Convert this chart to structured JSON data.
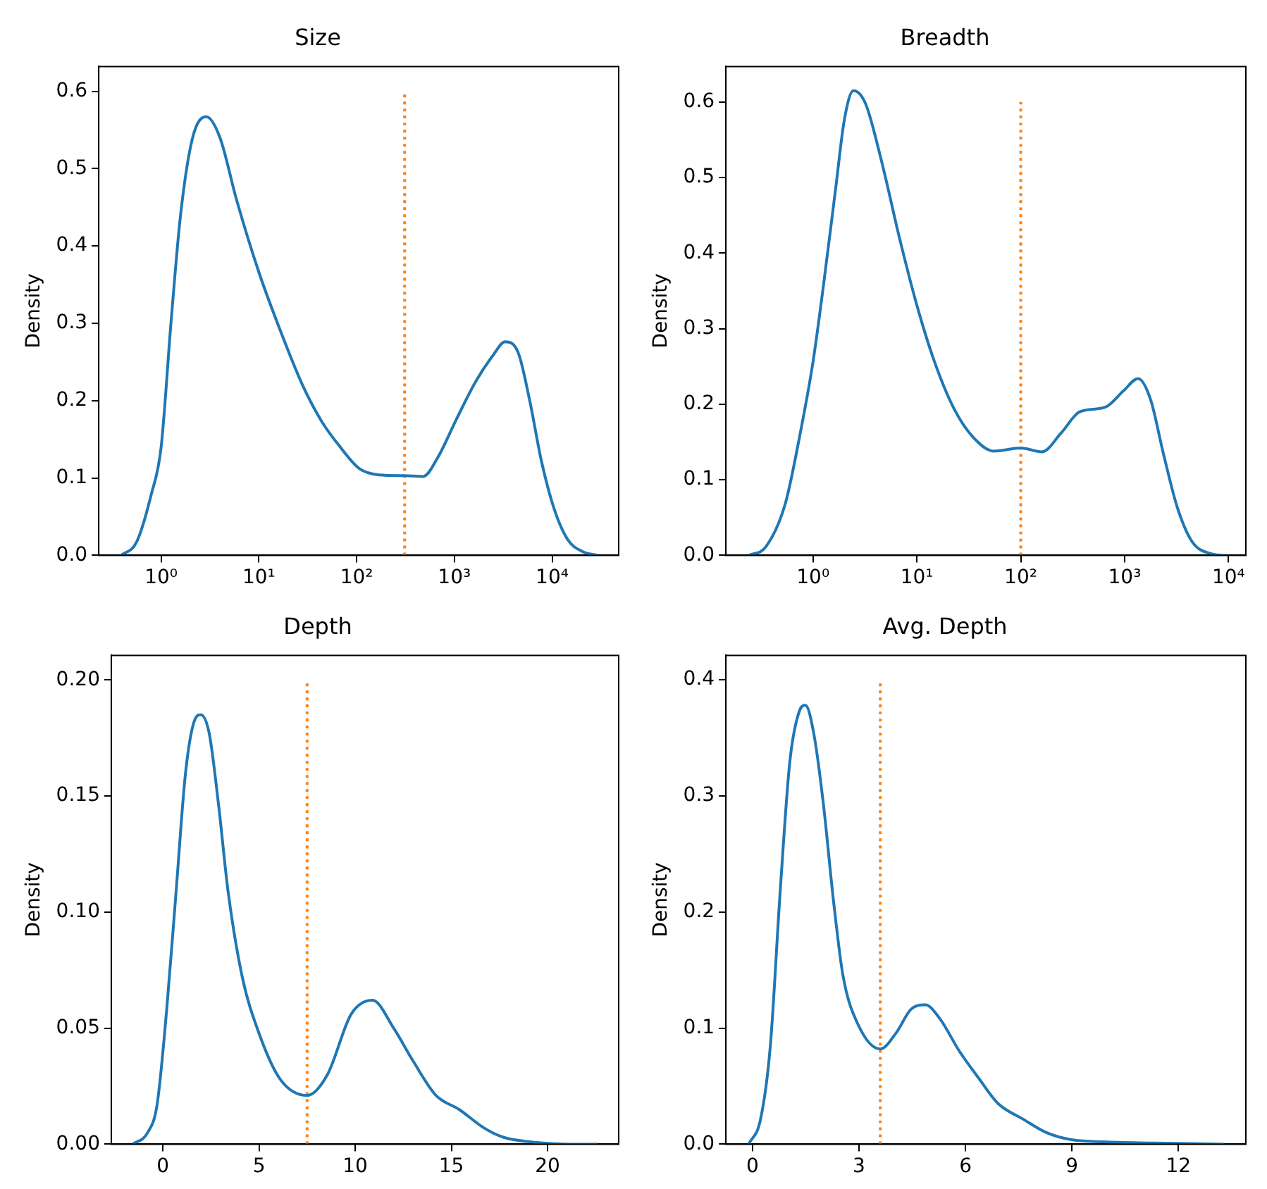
{
  "chart_data": [
    {
      "type": "line",
      "title": "Size",
      "ylabel": "Density",
      "log": "x",
      "grid": false,
      "legend": false,
      "xlim": [
        0.23,
        48000
      ],
      "xticks": [
        {
          "value": 1,
          "label": "10⁰"
        },
        {
          "value": 10,
          "label": "10¹"
        },
        {
          "value": 100,
          "label": "10²"
        },
        {
          "value": 1000,
          "label": "10³"
        },
        {
          "value": 10000,
          "label": "10⁴"
        }
      ],
      "ylim": [
        0,
        0.632
      ],
      "yticks": [
        {
          "value": 0,
          "label": "0.0"
        },
        {
          "value": 0.1,
          "label": "0.1"
        },
        {
          "value": 0.2,
          "label": "0.2"
        },
        {
          "value": 0.3,
          "label": "0.3"
        },
        {
          "value": 0.4,
          "label": "0.4"
        },
        {
          "value": 0.5,
          "label": "0.5"
        },
        {
          "value": 0.6,
          "label": "0.6"
        }
      ],
      "series": [
        {
          "color": "#1f77b4",
          "line_style": "solid",
          "x": [
            0.39,
            0.56,
            0.79,
            1,
            1.26,
            1.58,
            2.1,
            2.9,
            4,
            5.9,
            10,
            17,
            28,
            44,
            68,
            107,
            170,
            310,
            480,
            680,
            1050,
            1660,
            2500,
            3300,
            4500,
            5900,
            7800,
            10500,
            14500,
            20400,
            29000
          ],
          "values": [
            0,
            0.017,
            0.078,
            0.14,
            0.3,
            0.44,
            0.54,
            0.567,
            0.54,
            0.46,
            0.366,
            0.287,
            0.22,
            0.173,
            0.14,
            0.112,
            0.104,
            0.103,
            0.102,
            0.127,
            0.176,
            0.225,
            0.259,
            0.276,
            0.262,
            0.2,
            0.121,
            0.06,
            0.02,
            0.005,
            0
          ]
        },
        {
          "color": "#ff7f0e",
          "line_style": "dotted",
          "x": [
            310,
            310
          ],
          "values": [
            0,
            0.6
          ]
        }
      ]
    },
    {
      "type": "line",
      "title": "Breadth",
      "ylabel": "Density",
      "log": "x",
      "grid": false,
      "legend": false,
      "xlim": [
        0.145,
        14700
      ],
      "xticks": [
        {
          "value": 1,
          "label": "10⁰"
        },
        {
          "value": 10,
          "label": "10¹"
        },
        {
          "value": 100,
          "label": "10²"
        },
        {
          "value": 1000,
          "label": "10³"
        },
        {
          "value": 10000,
          "label": "10⁴"
        }
      ],
      "ylim": [
        0,
        0.647
      ],
      "yticks": [
        {
          "value": 0,
          "label": "0.0"
        },
        {
          "value": 0.1,
          "label": "0.1"
        },
        {
          "value": 0.2,
          "label": "0.2"
        },
        {
          "value": 0.3,
          "label": "0.3"
        },
        {
          "value": 0.4,
          "label": "0.4"
        },
        {
          "value": 0.5,
          "label": "0.5"
        },
        {
          "value": 0.6,
          "label": "0.6"
        }
      ],
      "series": [
        {
          "color": "#1f77b4",
          "line_style": "solid",
          "x": [
            0.24,
            0.35,
            0.54,
            0.74,
            1,
            1.26,
            1.66,
            2.0,
            2.45,
            3.2,
            4.6,
            6.8,
            10,
            14.8,
            23,
            35,
            55,
            100,
            160,
            245,
            370,
            650,
            980,
            1350,
            1780,
            2340,
            3240,
            4470,
            6800,
            8900
          ],
          "values": [
            0,
            0.011,
            0.068,
            0.156,
            0.256,
            0.357,
            0.488,
            0.576,
            0.615,
            0.598,
            0.52,
            0.42,
            0.331,
            0.256,
            0.193,
            0.156,
            0.138,
            0.142,
            0.137,
            0.162,
            0.19,
            0.196,
            0.218,
            0.234,
            0.206,
            0.137,
            0.062,
            0.018,
            0.002,
            0
          ]
        },
        {
          "color": "#ff7f0e",
          "line_style": "dotted",
          "x": [
            100,
            100
          ],
          "values": [
            0,
            0.6
          ]
        }
      ]
    },
    {
      "type": "line",
      "title": "Depth",
      "ylabel": "Density",
      "grid": false,
      "legend": false,
      "xlim": [
        -2.68,
        23.7
      ],
      "xticks": [
        0,
        5,
        10,
        15,
        20
      ],
      "ylim": [
        0,
        0.2106
      ],
      "yticks": [
        {
          "value": 0,
          "label": "0.00"
        },
        {
          "value": 0.05,
          "label": "0.05"
        },
        {
          "value": 0.1,
          "label": "0.10"
        },
        {
          "value": 0.15,
          "label": "0.15"
        },
        {
          "value": 0.2,
          "label": "0.20"
        }
      ],
      "series": [
        {
          "color": "#1f77b4",
          "line_style": "solid",
          "x": [
            -1.57,
            -0.79,
            -0.3,
            0.2,
            0.69,
            1.18,
            1.67,
            1.97,
            2.41,
            2.9,
            3.39,
            4.13,
            4.99,
            6.1,
            7.5,
            8.56,
            9.79,
            10.9,
            12.0,
            13.0,
            14.2,
            15.4,
            16.7,
            17.7,
            19.1,
            21.1,
            22.6
          ],
          "values": [
            0,
            0.005,
            0.017,
            0.058,
            0.109,
            0.16,
            0.183,
            0.185,
            0.177,
            0.146,
            0.109,
            0.072,
            0.048,
            0.028,
            0.021,
            0.03,
            0.056,
            0.062,
            0.05,
            0.036,
            0.021,
            0.015,
            0.007,
            0.003,
            0.001,
            0,
            0
          ]
        },
        {
          "color": "#ff7f0e",
          "line_style": "dotted",
          "x": [
            7.5,
            7.5
          ],
          "values": [
            0,
            0.2
          ]
        }
      ]
    },
    {
      "type": "line",
      "title": "Avg. Depth",
      "ylabel": "Density",
      "grid": false,
      "legend": false,
      "xlim": [
        -0.75,
        13.9
      ],
      "xticks": [
        0,
        3,
        6,
        9,
        12
      ],
      "ylim": [
        0,
        0.421
      ],
      "yticks": [
        {
          "value": 0,
          "label": "0.0"
        },
        {
          "value": 0.1,
          "label": "0.1"
        },
        {
          "value": 0.2,
          "label": "0.2"
        },
        {
          "value": 0.3,
          "label": "0.3"
        },
        {
          "value": 0.4,
          "label": "0.4"
        }
      ],
      "series": [
        {
          "color": "#1f77b4",
          "line_style": "solid",
          "x": [
            -0.11,
            0.23,
            0.5,
            0.78,
            1.05,
            1.32,
            1.49,
            1.73,
            2.0,
            2.28,
            2.55,
            2.96,
            3.6,
            4.05,
            4.46,
            4.87,
            5.28,
            5.83,
            6.37,
            6.92,
            7.6,
            8.28,
            8.96,
            9.9,
            11.3,
            13.3
          ],
          "values": [
            0,
            0.022,
            0.084,
            0.218,
            0.329,
            0.373,
            0.378,
            0.353,
            0.292,
            0.21,
            0.145,
            0.104,
            0.082,
            0.096,
            0.116,
            0.12,
            0.108,
            0.08,
            0.057,
            0.035,
            0.022,
            0.01,
            0.004,
            0.002,
            0.001,
            0
          ]
        },
        {
          "color": "#ff7f0e",
          "line_style": "dotted",
          "x": [
            3.6,
            3.6
          ],
          "values": [
            0,
            0.4
          ]
        }
      ]
    }
  ]
}
